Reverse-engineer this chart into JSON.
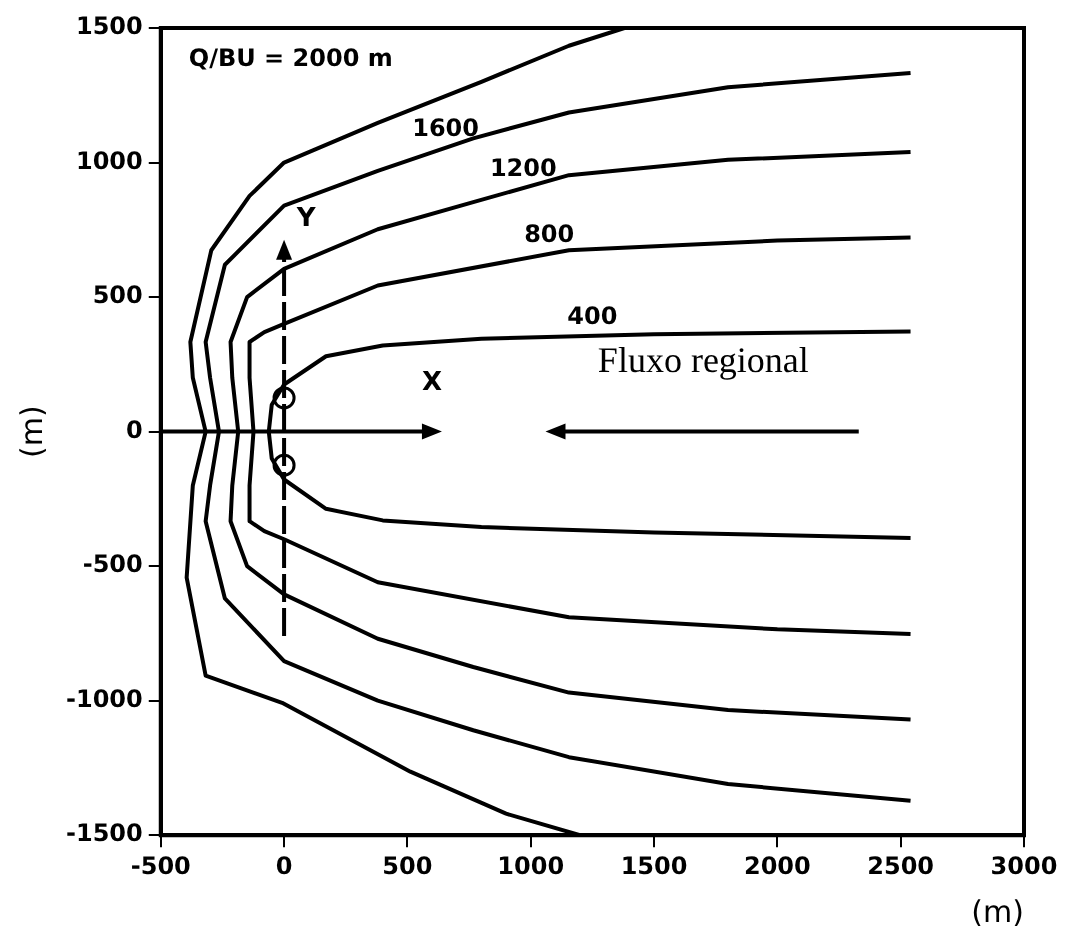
{
  "chart_data": {
    "type": "line",
    "xlabel": "(m)",
    "ylabel": "(m)",
    "xlim": [
      -500,
      3000
    ],
    "ylim": [
      -1500,
      1500
    ],
    "xticks": [
      -500,
      0,
      500,
      1000,
      1500,
      2000,
      2500,
      3000
    ],
    "yticks": [
      -1500,
      -1000,
      -500,
      0,
      500,
      1000,
      1500
    ],
    "grid": false,
    "legend": false,
    "marker": "none",
    "line_style": "solid",
    "annotations": [
      "Fluxo regional",
      "X",
      "Y"
    ],
    "series": [
      {
        "name": "Q/BU = 2000 m",
        "color": "#000000",
        "x": [
          1380,
          1155,
          800,
          380,
          0,
          -140,
          -295,
          -380,
          -370,
          -318,
          -370,
          -395,
          -318,
          -8,
          512,
          900,
          1200
        ],
        "values": [
          1500,
          1434,
          1300,
          1147,
          1000,
          876,
          674,
          333,
          200,
          0,
          -200,
          -543,
          -907,
          -1008,
          -1264,
          -1420,
          -1500
        ]
      },
      {
        "name": "1600",
        "color": "#000000",
        "x": [
          2540,
          1800,
          1155,
          767,
          380,
          0,
          -240,
          -318,
          -300,
          -264,
          -300,
          -318,
          -240,
          0,
          380,
          767,
          1155,
          1800,
          2540
        ],
        "values": [
          1333,
          1280,
          1186,
          1090,
          969,
          840,
          620,
          333,
          200,
          0,
          -200,
          -333,
          -620,
          -853,
          -1000,
          -1110,
          -1210,
          -1310,
          -1372
        ]
      },
      {
        "name": "1200",
        "color": "#000000",
        "x": [
          2540,
          1800,
          1155,
          767,
          380,
          0,
          -150,
          -217,
          -210,
          -186,
          -210,
          -217,
          -150,
          0,
          380,
          767,
          1155,
          1800,
          2540
        ],
        "values": [
          1039,
          1010,
          953,
          853,
          752,
          605,
          500,
          333,
          200,
          0,
          -200,
          -333,
          -500,
          -605,
          -770,
          -875,
          -970,
          -1035,
          -1070
        ]
      },
      {
        "name": "800",
        "color": "#000000",
        "x": [
          2540,
          2000,
          1155,
          380,
          0,
          -80,
          -140,
          -140,
          -124,
          -140,
          -140,
          -80,
          0,
          380,
          1155,
          2000,
          2540
        ],
        "values": [
          721,
          710,
          674,
          543,
          400,
          370,
          333,
          200,
          0,
          -200,
          -333,
          -370,
          -400,
          -560,
          -690,
          -735,
          -752
        ]
      },
      {
        "name": "400",
        "color": "#000000",
        "x": [
          2540,
          1500,
          800,
          400,
          170,
          0,
          -50,
          -62,
          -50,
          0,
          170,
          400,
          800,
          1500,
          2540
        ],
        "values": [
          372,
          362,
          345,
          320,
          280,
          175,
          100,
          0,
          -100,
          -178,
          -287,
          -330,
          -355,
          -375,
          -395
        ]
      }
    ]
  }
}
